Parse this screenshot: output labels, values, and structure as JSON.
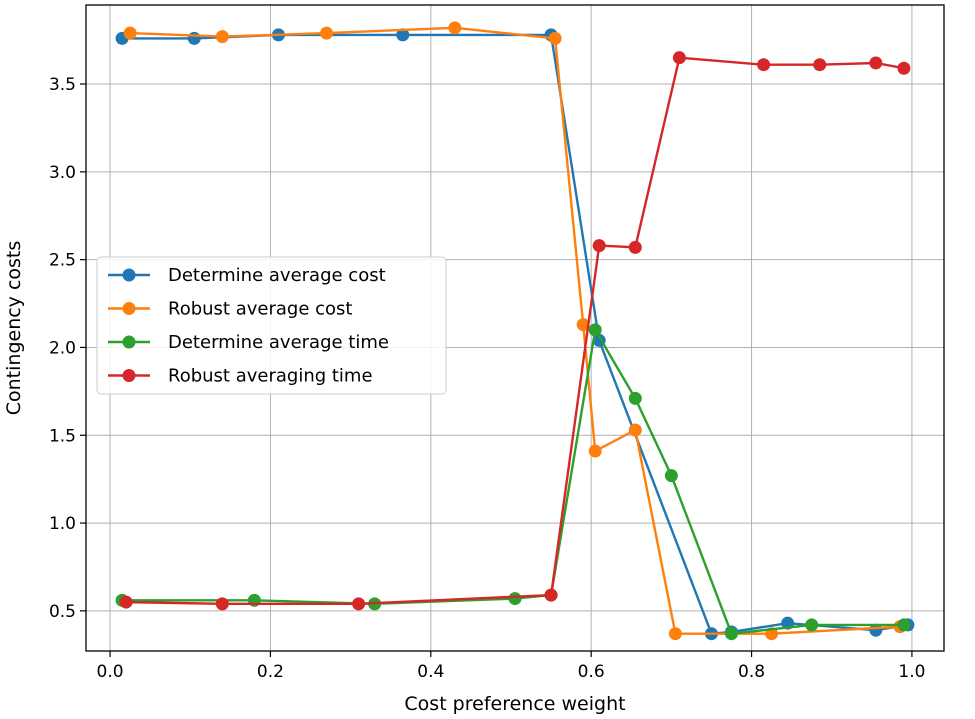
{
  "chart_data": {
    "type": "line",
    "title": "",
    "xlabel": "Cost preference weight",
    "ylabel": "Contingency costs",
    "xlim": [
      -0.03,
      1.04
    ],
    "ylim": [
      0.2715,
      3.95
    ],
    "grid": true,
    "legend_position": "center-left",
    "xticks": [
      0.0,
      0.2,
      0.4,
      0.6,
      0.8,
      1.0
    ],
    "xtick_labels": [
      "0.0",
      "0.2",
      "0.4",
      "0.6",
      "0.8",
      "1.0"
    ],
    "yticks": [
      0.5,
      1.0,
      1.5,
      2.0,
      2.5,
      3.0,
      3.5
    ],
    "ytick_labels": [
      "0.5",
      "1.0",
      "1.5",
      "2.0",
      "2.5",
      "3.0",
      "3.5"
    ],
    "series": [
      {
        "name": "Determine average cost",
        "color": "#1f77b4",
        "x": [
          0.015,
          0.105,
          0.21,
          0.365,
          0.55,
          0.61,
          0.75,
          0.775,
          0.845,
          0.955,
          0.995
        ],
        "y": [
          3.76,
          3.76,
          3.78,
          3.78,
          3.78,
          2.04,
          0.37,
          0.38,
          0.43,
          0.39,
          0.42
        ]
      },
      {
        "name": "Robust average cost",
        "color": "#ff7f0e",
        "x": [
          0.025,
          0.14,
          0.27,
          0.43,
          0.555,
          0.59,
          0.605,
          0.655,
          0.705,
          0.825,
          0.985
        ],
        "y": [
          3.79,
          3.77,
          3.79,
          3.82,
          3.76,
          2.13,
          1.41,
          1.53,
          0.37,
          0.37,
          0.41
        ]
      },
      {
        "name": "Determine average time",
        "color": "#2ca02c",
        "x": [
          0.015,
          0.18,
          0.33,
          0.505,
          0.55,
          0.605,
          0.655,
          0.7,
          0.775,
          0.875,
          0.99
        ],
        "y": [
          0.56,
          0.56,
          0.54,
          0.57,
          0.59,
          2.1,
          1.71,
          1.27,
          0.37,
          0.42,
          0.42
        ]
      },
      {
        "name": "Robust averaging time",
        "color": "#d62728",
        "x": [
          0.02,
          0.14,
          0.31,
          0.55,
          0.61,
          0.655,
          0.71,
          0.815,
          0.885,
          0.955,
          0.99
        ],
        "y": [
          0.55,
          0.54,
          0.54,
          0.59,
          2.58,
          2.57,
          3.65,
          3.61,
          3.61,
          3.62,
          3.59
        ]
      }
    ]
  }
}
